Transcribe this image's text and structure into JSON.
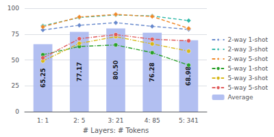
{
  "chart_data": {
    "type": "bar",
    "xlabel": "# Layers: # Tokens",
    "categories": [
      "1: 1",
      "2: 5",
      "3: 21",
      "4: 85",
      "5: 341"
    ],
    "series": [
      {
        "name": "2-way 1-shot",
        "type": "line",
        "color": "#6688cc",
        "marker": "diamond",
        "line_style": "dashed",
        "values": [
          79.0,
          83.5,
          86.0,
          82.5,
          79.5
        ]
      },
      {
        "name": "2-way 3-shot",
        "type": "line",
        "color": "#30b8a8",
        "marker": "diamond",
        "line_style": "dashed",
        "values": [
          83.0,
          91.0,
          93.5,
          92.5,
          88.0
        ]
      },
      {
        "name": "2-way 5-shot",
        "type": "line",
        "color": "#f08828",
        "marker": "diamond",
        "line_style": "dashed",
        "values": [
          82.0,
          91.5,
          94.0,
          92.0,
          80.5
        ]
      },
      {
        "name": "5-way 1-shot",
        "type": "line",
        "color": "#28a028",
        "marker": "circle",
        "line_style": "dashdot",
        "values": [
          55.0,
          63.0,
          64.5,
          57.0,
          45.0
        ]
      },
      {
        "name": "5-way 3-shot",
        "type": "line",
        "color": "#d8b818",
        "marker": "circle",
        "line_style": "dashdot",
        "values": [
          49.0,
          66.0,
          72.5,
          65.5,
          58.5
        ]
      },
      {
        "name": "5-way 5-shot",
        "type": "line",
        "color": "#e05858",
        "marker": "circle",
        "line_style": "dashdot",
        "values": [
          52.0,
          70.5,
          74.5,
          70.0,
          68.5
        ]
      },
      {
        "name": "Average",
        "type": "bar",
        "color": "#aab8f0",
        "data_labels": true,
        "values": [
          65.25,
          77.17,
          80.5,
          76.28,
          68.98
        ],
        "value_labels": [
          "65.25",
          "77.17",
          "80.50",
          "76.28",
          "68.98"
        ]
      }
    ],
    "ylim": [
      0,
      100
    ],
    "yticks": [
      0,
      25,
      50,
      75,
      100
    ],
    "grid": true,
    "legend": "right"
  }
}
